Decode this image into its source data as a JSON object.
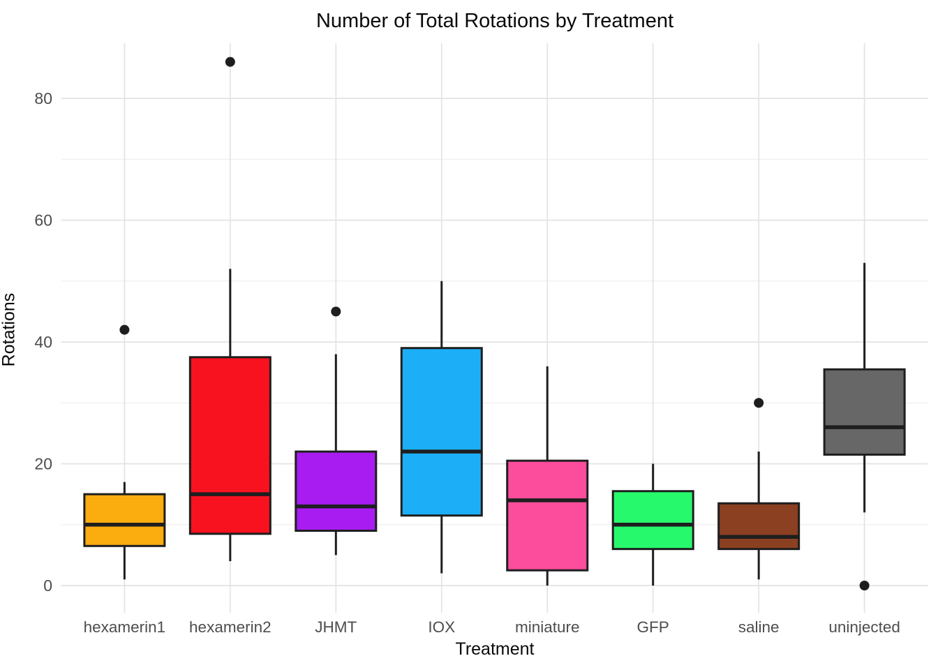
{
  "chart_data": {
    "type": "boxplot",
    "title": "Number of Total Rotations by Treatment",
    "xlabel": "Treatment",
    "ylabel": "Rotations",
    "y_ticks": [
      0,
      20,
      40,
      60,
      80
    ],
    "y_minor_gridlines": [
      10,
      30,
      50,
      70
    ],
    "ylim": [
      -4,
      89
    ],
    "grid": "on",
    "legend": "none",
    "categories": [
      "hexamerin1",
      "hexamerin2",
      "JHMT",
      "IOX",
      "miniature",
      "GFP",
      "saline",
      "uninjected"
    ],
    "series": [
      {
        "name": "hexamerin1",
        "color": "#FBAD10",
        "low": 1,
        "q1": 6.5,
        "median": 10,
        "q3": 15,
        "high": 17,
        "outliers": [
          42
        ]
      },
      {
        "name": "hexamerin2",
        "color": "#F8121F",
        "low": 4,
        "q1": 8.5,
        "median": 15,
        "q3": 37.5,
        "high": 52,
        "outliers": [
          86
        ]
      },
      {
        "name": "JHMT",
        "color": "#A81CF2",
        "low": 5,
        "q1": 9,
        "median": 13,
        "q3": 22,
        "high": 38,
        "outliers": [
          45
        ]
      },
      {
        "name": "IOX",
        "color": "#1CAFF8",
        "low": 2,
        "q1": 11.5,
        "median": 22,
        "q3": 39,
        "high": 50,
        "outliers": []
      },
      {
        "name": "miniature",
        "color": "#FB4D9C",
        "low": 0,
        "q1": 2.5,
        "median": 14,
        "q3": 20.5,
        "high": 36,
        "outliers": []
      },
      {
        "name": "GFP",
        "color": "#27F96C",
        "low": 0,
        "q1": 6,
        "median": 10,
        "q3": 15.5,
        "high": 20,
        "outliers": []
      },
      {
        "name": "saline",
        "color": "#8B4021",
        "low": 1,
        "q1": 6,
        "median": 8,
        "q3": 13.5,
        "high": 22,
        "outliers": [
          30
        ]
      },
      {
        "name": "uninjected",
        "color": "#676767",
        "low": 12,
        "q1": 21.5,
        "median": 26,
        "q3": 35.5,
        "high": 53,
        "outliers": [
          0
        ]
      }
    ],
    "colors": {
      "grid_major": "#E3E3E3",
      "grid_minor": "#EFEFEF",
      "box_stroke": "#1E1E1E",
      "outlier": "#1E1E1E",
      "tick_label": "#4D4D4D",
      "title": "#0A0A0A",
      "background": "#FFFFFF"
    }
  }
}
